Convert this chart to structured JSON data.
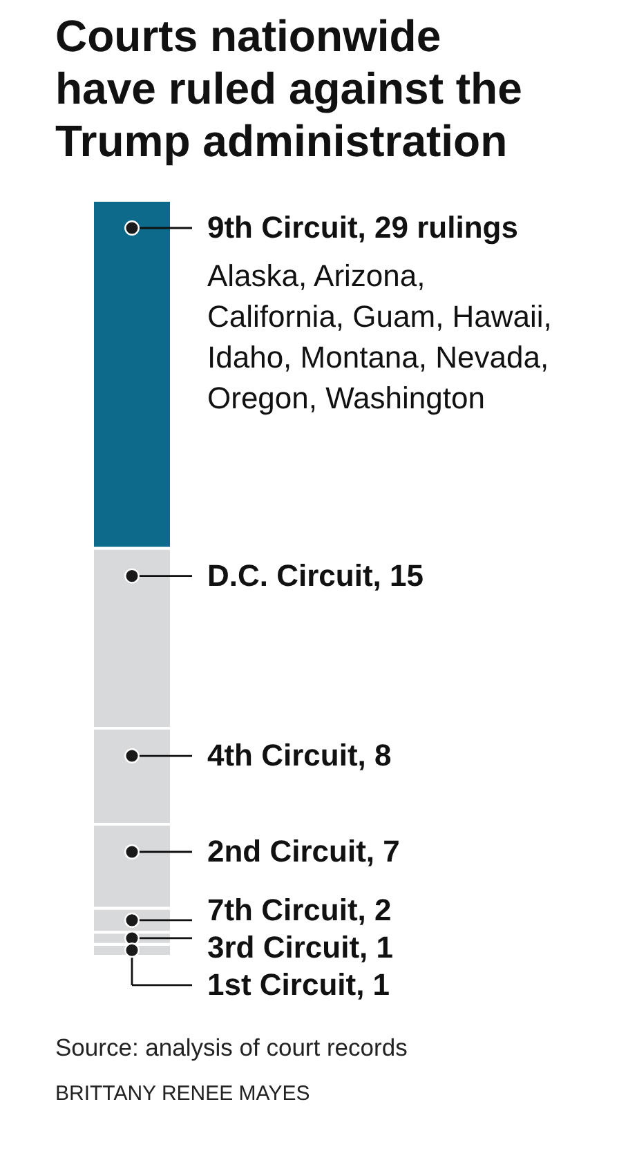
{
  "chart_data": {
    "type": "bar",
    "title": "Courts nationwide have ruled against the Trump administration",
    "categories": [
      null
    ],
    "stacked": true,
    "series": [
      {
        "color": "#d8d9db",
        "values": [
          1
        ],
        "value_labels": [
          "1st Circuit, 1"
        ]
      },
      {
        "color": "#d8d9db",
        "values": [
          1
        ],
        "value_labels": [
          "3rd Circuit, 1"
        ]
      },
      {
        "color": "#d8d9db",
        "values": [
          2
        ],
        "value_labels": [
          "7th Circuit, 2"
        ]
      },
      {
        "color": "#d8d9db",
        "values": [
          7
        ],
        "value_labels": [
          "2nd Circuit, 7"
        ]
      },
      {
        "color": "#d8d9db",
        "values": [
          8
        ],
        "value_labels": [
          "4th Circuit, 8"
        ]
      },
      {
        "color": "#d8d9db",
        "values": [
          15
        ],
        "value_labels": [
          "D.C. Circuit, 15"
        ]
      },
      {
        "color": "#0e6a8b",
        "values": [
          29
        ],
        "value_labels": [
          "9th Circuit, 29 rulings"
        ]
      }
    ],
    "annotations": [
      "Alaska, Arizona, California, Guam, Hawaii, Idaho, Montana, Nevada, Oregon, Washington",
      "Source: analysis of court records",
      "BRITTANY RENEE MAYES"
    ]
  }
}
